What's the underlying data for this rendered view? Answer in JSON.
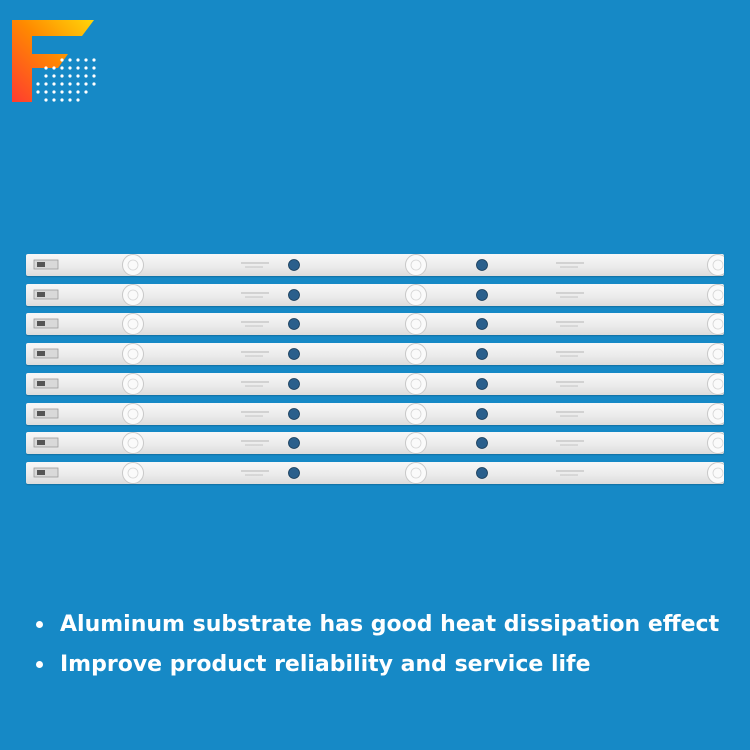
{
  "logo": {
    "icon": "brand-letter-f-icon",
    "colors": [
      "#ff3b30",
      "#ff9500",
      "#ffd60a"
    ]
  },
  "product": {
    "image": "led-backlight-strips-photo",
    "strip_count": 8,
    "strip_color": "#eeeeee",
    "background": "#1689c6"
  },
  "features": [
    {
      "text": "Aluminum substrate has good heat dissipation effect"
    },
    {
      "text": "Improve product reliability and service life"
    }
  ]
}
